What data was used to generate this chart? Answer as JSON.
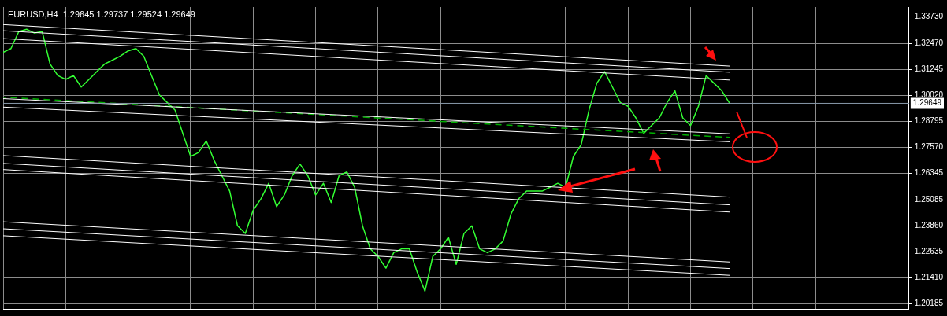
{
  "chart_data": {
    "type": "line",
    "title": "EURUSD,H4  1.29645 1.29737 1.29524 1.29649",
    "categories": [
      null,
      null,
      null,
      null,
      null,
      null,
      null,
      null,
      null,
      null,
      null,
      null,
      null,
      null,
      null,
      null,
      null,
      null,
      null,
      null,
      null,
      null,
      null,
      null,
      null,
      null,
      null,
      null,
      null,
      null,
      null,
      null,
      null,
      null,
      null,
      null,
      null,
      null,
      null,
      null,
      null,
      null,
      null,
      null,
      null,
      null,
      null,
      null,
      null,
      null,
      null,
      null,
      null,
      null,
      null,
      null,
      null,
      null,
      null,
      null,
      null,
      null,
      null,
      null,
      null,
      null,
      null,
      null,
      null,
      null,
      null,
      null,
      null,
      null,
      null,
      null,
      null,
      null,
      null,
      null,
      null,
      null,
      null,
      null,
      null,
      null,
      null,
      null,
      null,
      null,
      null,
      null,
      null,
      null
    ],
    "series": [
      {
        "color": "#ffffff",
        "values": [
          1.3337,
          null,
          null,
          null,
          null,
          null,
          null,
          null,
          null,
          null,
          null,
          null,
          null,
          null,
          null,
          null,
          null,
          null,
          null,
          null,
          null,
          null,
          null,
          null,
          null,
          null,
          null,
          null,
          null,
          null,
          null,
          null,
          null,
          null,
          null,
          null,
          null,
          null,
          null,
          null,
          null,
          null,
          null,
          null,
          null,
          null,
          null,
          null,
          null,
          null,
          null,
          null,
          null,
          null,
          null,
          null,
          null,
          null,
          null,
          null,
          null,
          null,
          null,
          null,
          null,
          null,
          null,
          null,
          null,
          null,
          null,
          null,
          null,
          null,
          null,
          null,
          null,
          null,
          null,
          null,
          null,
          null,
          null,
          null,
          null,
          null,
          null,
          null,
          null,
          null,
          null,
          null,
          null,
          1.3141
        ]
      },
      {
        "color": "#ffffff",
        "values": [
          1.3308,
          null,
          null,
          null,
          null,
          null,
          null,
          null,
          null,
          null,
          null,
          null,
          null,
          null,
          null,
          null,
          null,
          null,
          null,
          null,
          null,
          null,
          null,
          null,
          null,
          null,
          null,
          null,
          null,
          null,
          null,
          null,
          null,
          null,
          null,
          null,
          null,
          null,
          null,
          null,
          null,
          null,
          null,
          null,
          null,
          null,
          null,
          null,
          null,
          null,
          null,
          null,
          null,
          null,
          null,
          null,
          null,
          null,
          null,
          null,
          null,
          null,
          null,
          null,
          null,
          null,
          null,
          null,
          null,
          null,
          null,
          null,
          null,
          null,
          null,
          null,
          null,
          null,
          null,
          null,
          null,
          null,
          null,
          null,
          null,
          null,
          null,
          null,
          null,
          null,
          null,
          null,
          null,
          1.3112
        ]
      },
      {
        "color": "#ffffff",
        "values": [
          1.3271,
          null,
          null,
          null,
          null,
          null,
          null,
          null,
          null,
          null,
          null,
          null,
          null,
          null,
          null,
          null,
          null,
          null,
          null,
          null,
          null,
          null,
          null,
          null,
          null,
          null,
          null,
          null,
          null,
          null,
          null,
          null,
          null,
          null,
          null,
          null,
          null,
          null,
          null,
          null,
          null,
          null,
          null,
          null,
          null,
          null,
          null,
          null,
          null,
          null,
          null,
          null,
          null,
          null,
          null,
          null,
          null,
          null,
          null,
          null,
          null,
          null,
          null,
          null,
          null,
          null,
          null,
          null,
          null,
          null,
          null,
          null,
          null,
          null,
          null,
          null,
          null,
          null,
          null,
          null,
          null,
          null,
          null,
          null,
          null,
          null,
          null,
          null,
          null,
          null,
          null,
          null,
          null,
          1.3075
        ]
      },
      {
        "color": "#ffffff",
        "values": [
          1.2987,
          null,
          null,
          null,
          null,
          null,
          null,
          null,
          null,
          null,
          null,
          null,
          null,
          null,
          null,
          null,
          null,
          null,
          null,
          null,
          null,
          null,
          null,
          null,
          null,
          null,
          null,
          null,
          null,
          null,
          null,
          null,
          null,
          null,
          null,
          null,
          null,
          null,
          null,
          null,
          null,
          null,
          null,
          null,
          null,
          null,
          null,
          null,
          null,
          null,
          null,
          null,
          null,
          null,
          null,
          null,
          null,
          null,
          null,
          null,
          null,
          null,
          null,
          null,
          null,
          null,
          null,
          null,
          null,
          null,
          null,
          null,
          null,
          null,
          null,
          null,
          null,
          null,
          null,
          null,
          null,
          null,
          null,
          null,
          null,
          null,
          null,
          null,
          null,
          null,
          null,
          null,
          null,
          1.2821
        ]
      },
      {
        "color": "#ffffff",
        "values": [
          1.2947,
          null,
          null,
          null,
          null,
          null,
          null,
          null,
          null,
          null,
          null,
          null,
          null,
          null,
          null,
          null,
          null,
          null,
          null,
          null,
          null,
          null,
          null,
          null,
          null,
          null,
          null,
          null,
          null,
          null,
          null,
          null,
          null,
          null,
          null,
          null,
          null,
          null,
          null,
          null,
          null,
          null,
          null,
          null,
          null,
          null,
          null,
          null,
          null,
          null,
          null,
          null,
          null,
          null,
          null,
          null,
          null,
          null,
          null,
          null,
          null,
          null,
          null,
          null,
          null,
          null,
          null,
          null,
          null,
          null,
          null,
          null,
          null,
          null,
          null,
          null,
          null,
          null,
          null,
          null,
          null,
          null,
          null,
          null,
          null,
          null,
          null,
          null,
          null,
          null,
          null,
          null,
          null,
          1.2783
        ]
      },
      {
        "color": "#ffffff",
        "values": [
          1.2718,
          null,
          null,
          null,
          null,
          null,
          null,
          null,
          null,
          null,
          null,
          null,
          null,
          null,
          null,
          null,
          null,
          null,
          null,
          null,
          null,
          null,
          null,
          null,
          null,
          null,
          null,
          null,
          null,
          null,
          null,
          null,
          null,
          null,
          null,
          null,
          null,
          null,
          null,
          null,
          null,
          null,
          null,
          null,
          null,
          null,
          null,
          null,
          null,
          null,
          null,
          null,
          null,
          null,
          null,
          null,
          null,
          null,
          null,
          null,
          null,
          null,
          null,
          null,
          null,
          null,
          null,
          null,
          null,
          null,
          null,
          null,
          null,
          null,
          null,
          null,
          null,
          null,
          null,
          null,
          null,
          null,
          null,
          null,
          null,
          null,
          null,
          null,
          null,
          null,
          null,
          null,
          null,
          1.2522
        ]
      },
      {
        "color": "#ffffff",
        "values": [
          1.2681,
          null,
          null,
          null,
          null,
          null,
          null,
          null,
          null,
          null,
          null,
          null,
          null,
          null,
          null,
          null,
          null,
          null,
          null,
          null,
          null,
          null,
          null,
          null,
          null,
          null,
          null,
          null,
          null,
          null,
          null,
          null,
          null,
          null,
          null,
          null,
          null,
          null,
          null,
          null,
          null,
          null,
          null,
          null,
          null,
          null,
          null,
          null,
          null,
          null,
          null,
          null,
          null,
          null,
          null,
          null,
          null,
          null,
          null,
          null,
          null,
          null,
          null,
          null,
          null,
          null,
          null,
          null,
          null,
          null,
          null,
          null,
          null,
          null,
          null,
          null,
          null,
          null,
          null,
          null,
          null,
          null,
          null,
          null,
          null,
          null,
          null,
          null,
          null,
          null,
          null,
          null,
          null,
          1.2485
        ]
      },
      {
        "color": "#ffffff",
        "values": [
          1.2652,
          null,
          null,
          null,
          null,
          null,
          null,
          null,
          null,
          null,
          null,
          null,
          null,
          null,
          null,
          null,
          null,
          null,
          null,
          null,
          null,
          null,
          null,
          null,
          null,
          null,
          null,
          null,
          null,
          null,
          null,
          null,
          null,
          null,
          null,
          null,
          null,
          null,
          null,
          null,
          null,
          null,
          null,
          null,
          null,
          null,
          null,
          null,
          null,
          null,
          null,
          null,
          null,
          null,
          null,
          null,
          null,
          null,
          null,
          null,
          null,
          null,
          null,
          null,
          null,
          null,
          null,
          null,
          null,
          null,
          null,
          null,
          null,
          null,
          null,
          null,
          null,
          null,
          null,
          null,
          null,
          null,
          null,
          null,
          null,
          null,
          null,
          null,
          null,
          null,
          null,
          null,
          null,
          1.2451
        ]
      },
      {
        "color": "#ffffff",
        "values": [
          1.2405,
          null,
          null,
          null,
          null,
          null,
          null,
          null,
          null,
          null,
          null,
          null,
          null,
          null,
          null,
          null,
          null,
          null,
          null,
          null,
          null,
          null,
          null,
          null,
          null,
          null,
          null,
          null,
          null,
          null,
          null,
          null,
          null,
          null,
          null,
          null,
          null,
          null,
          null,
          null,
          null,
          null,
          null,
          null,
          null,
          null,
          null,
          null,
          null,
          null,
          null,
          null,
          null,
          null,
          null,
          null,
          null,
          null,
          null,
          null,
          null,
          null,
          null,
          null,
          null,
          null,
          null,
          null,
          null,
          null,
          null,
          null,
          null,
          null,
          null,
          null,
          null,
          null,
          null,
          null,
          null,
          null,
          null,
          null,
          null,
          null,
          null,
          null,
          null,
          null,
          null,
          null,
          null,
          1.2215
        ]
      },
      {
        "color": "#ffffff",
        "values": [
          1.2372,
          null,
          null,
          null,
          null,
          null,
          null,
          null,
          null,
          null,
          null,
          null,
          null,
          null,
          null,
          null,
          null,
          null,
          null,
          null,
          null,
          null,
          null,
          null,
          null,
          null,
          null,
          null,
          null,
          null,
          null,
          null,
          null,
          null,
          null,
          null,
          null,
          null,
          null,
          null,
          null,
          null,
          null,
          null,
          null,
          null,
          null,
          null,
          null,
          null,
          null,
          null,
          null,
          null,
          null,
          null,
          null,
          null,
          null,
          null,
          null,
          null,
          null,
          null,
          null,
          null,
          null,
          null,
          null,
          null,
          null,
          null,
          null,
          null,
          null,
          null,
          null,
          null,
          null,
          null,
          null,
          null,
          null,
          null,
          null,
          null,
          null,
          null,
          null,
          null,
          null,
          null,
          null,
          1.2184
        ]
      },
      {
        "color": "#ffffff",
        "values": [
          1.2339,
          null,
          null,
          null,
          null,
          null,
          null,
          null,
          null,
          null,
          null,
          null,
          null,
          null,
          null,
          null,
          null,
          null,
          null,
          null,
          null,
          null,
          null,
          null,
          null,
          null,
          null,
          null,
          null,
          null,
          null,
          null,
          null,
          null,
          null,
          null,
          null,
          null,
          null,
          null,
          null,
          null,
          null,
          null,
          null,
          null,
          null,
          null,
          null,
          null,
          null,
          null,
          null,
          null,
          null,
          null,
          null,
          null,
          null,
          null,
          null,
          null,
          null,
          null,
          null,
          null,
          null,
          null,
          null,
          null,
          null,
          null,
          null,
          null,
          null,
          null,
          null,
          null,
          null,
          null,
          null,
          null,
          null,
          null,
          null,
          null,
          null,
          null,
          null,
          null,
          null,
          null,
          null,
          1.2152
        ]
      },
      {
        "color": "#00b000",
        "line_style": "dashed",
        "values": [
          1.2994,
          null,
          null,
          null,
          null,
          null,
          null,
          null,
          null,
          null,
          null,
          null,
          null,
          null,
          null,
          null,
          null,
          null,
          null,
          null,
          null,
          null,
          null,
          null,
          null,
          null,
          null,
          null,
          null,
          null,
          null,
          null,
          null,
          null,
          null,
          null,
          null,
          null,
          null,
          null,
          null,
          null,
          null,
          null,
          null,
          null,
          null,
          null,
          null,
          null,
          null,
          null,
          null,
          null,
          null,
          null,
          null,
          null,
          null,
          null,
          null,
          null,
          null,
          null,
          null,
          null,
          null,
          null,
          null,
          null,
          null,
          null,
          null,
          null,
          null,
          null,
          null,
          null,
          null,
          null,
          null,
          null,
          null,
          null,
          null,
          null,
          null,
          null,
          null,
          null,
          null,
          null,
          null,
          1.2804
        ]
      },
      {
        "color": "#33ff33",
        "values": [
          1.3206,
          1.3224,
          1.3304,
          1.3315,
          1.3297,
          1.3304,
          1.3151,
          1.3096,
          1.3078,
          1.3096,
          1.3042,
          1.3078,
          1.3115,
          1.3151,
          1.3169,
          1.3188,
          1.3213,
          1.3224,
          1.3188,
          1.3096,
          1.3005,
          1.2969,
          1.2933,
          1.2823,
          1.2714,
          1.2732,
          1.2787,
          1.2696,
          1.2623,
          1.255,
          1.2386,
          1.235,
          1.2459,
          1.2514,
          1.2587,
          1.2477,
          1.2532,
          1.2623,
          1.2678,
          1.2623,
          1.2532,
          1.2587,
          1.2496,
          1.2623,
          1.2641,
          1.2568,
          1.2386,
          1.2277,
          1.2241,
          1.2186,
          1.2259,
          1.2277,
          1.2277,
          1.2168,
          1.2077,
          1.2241,
          1.2277,
          1.2332,
          1.2204,
          1.235,
          1.2386,
          1.2277,
          1.2259,
          1.2277,
          1.2314,
          1.2441,
          1.2514,
          1.255,
          1.255,
          1.255,
          1.2568,
          1.2587,
          1.2568,
          1.2714,
          1.2769,
          1.2933,
          1.306,
          1.3115,
          1.3042,
          1.2969,
          1.2951,
          1.2896,
          1.2823,
          1.286,
          1.2896,
          1.2969,
          1.3024,
          1.2896,
          1.286,
          1.2951,
          1.3096,
          1.306,
          1.3024,
          1.2965
        ]
      }
    ],
    "ylim": [
      1.1993,
      1.342
    ],
    "yticks": [
      {
        "value": 1.3373,
        "label": "1.33730"
      },
      {
        "value": 1.3247,
        "label": "1.32470"
      },
      {
        "value": 1.31245,
        "label": "1.31245"
      },
      {
        "value": 1.3002,
        "label": "1.30020"
      },
      {
        "value": 1.28795,
        "label": "1.28795"
      },
      {
        "value": 1.2757,
        "label": "1.27570"
      },
      {
        "value": 1.26345,
        "label": "1.26345"
      },
      {
        "value": 1.25085,
        "label": "1.25085"
      },
      {
        "value": 1.2386,
        "label": "1.23860"
      },
      {
        "value": 1.22635,
        "label": "1.22635"
      },
      {
        "value": 1.2141,
        "label": "1.21410"
      },
      {
        "value": 1.20185,
        "label": "1.20185"
      }
    ],
    "ref_lines": [
      {
        "axis": "y",
        "value": 1.29649,
        "label": "1.29649",
        "color": "#8899aa"
      }
    ],
    "grid": true,
    "tick_labels": "y",
    "legend": false,
    "marker": "none",
    "line_style": "solid"
  }
}
